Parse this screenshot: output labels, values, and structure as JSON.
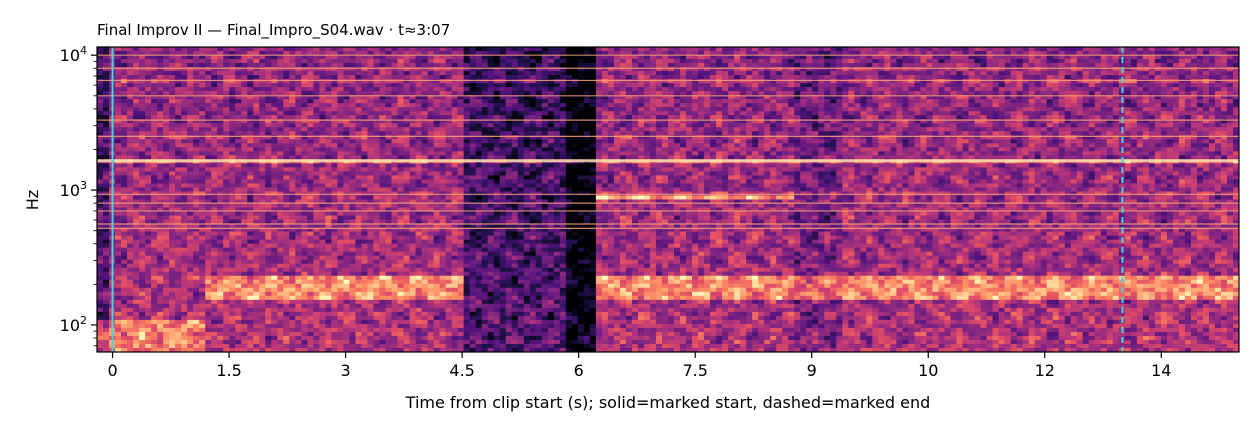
{
  "chart_data": {
    "type": "heatmap",
    "title": "Final Improv II  —  Final_Impro_S04.wav · t≈3:07",
    "xlabel": "Time from clip start (s); solid=marked start, dashed=marked end",
    "ylabel": "Hz",
    "xlim": [
      -0.2,
      14.5
    ],
    "ylim": [
      63,
      11500
    ],
    "y_scale": "log",
    "x_ticks": [
      {
        "value": 0,
        "label": "0"
      },
      {
        "value": 1.5,
        "label": "1.5"
      },
      {
        "value": 3,
        "label": "3"
      },
      {
        "value": 4.5,
        "label": "4.5"
      },
      {
        "value": 6,
        "label": "6"
      },
      {
        "value": 7.5,
        "label": "7.5"
      },
      {
        "value": 9,
        "label": "9"
      },
      {
        "value": 10.5,
        "label": "10"
      },
      {
        "value": 12,
        "label": "12"
      },
      {
        "value": 13.5,
        "label": "14"
      }
    ],
    "y_ticks": [
      {
        "value": 100,
        "base": "10",
        "exp": "2"
      },
      {
        "value": 1000,
        "base": "10",
        "exp": "3"
      },
      {
        "value": 10000,
        "base": "10",
        "exp": "4"
      }
    ],
    "colormap": "magma",
    "markers": [
      {
        "name": "marked start",
        "x": 0.0,
        "style": "solid",
        "color": "#3fd8e0"
      },
      {
        "name": "marked end",
        "x": 13.0,
        "style": "dashed",
        "color": "#3fd8e0"
      }
    ],
    "segments_start_s": [
      -0.2,
      1.2,
      4.5,
      5.8,
      6.2,
      8.8,
      9.4,
      10.5
    ],
    "harmonic_lines_hz": [
      520,
      560,
      700,
      800,
      930,
      1650,
      2500,
      3300,
      5000,
      6500,
      8000,
      10000
    ]
  }
}
